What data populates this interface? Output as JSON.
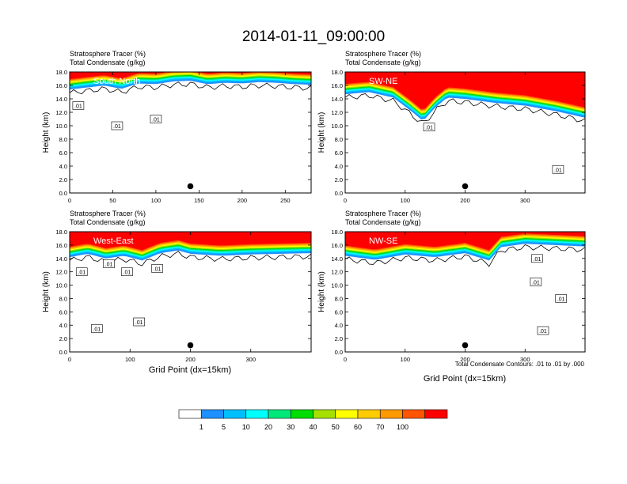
{
  "title": "2014-01-11_09:00:00",
  "panel_header_line1": "Stratosphere Tracer   (%)",
  "panel_header_line2": "Total Condensate   (g/kg)",
  "ylabel": "Height (km)",
  "xlabel": "Grid Point (dx=15km)",
  "contour_note": "Total Condensate Contours: .01 to .01 by .000",
  "colorbar": {
    "colors": [
      "#ffffff",
      "#1e90ff",
      "#00bfff",
      "#00ffff",
      "#00e87a",
      "#00dd00",
      "#a6e000",
      "#ffff00",
      "#ffcc00",
      "#ff9900",
      "#ff5500",
      "#ff0000"
    ],
    "labels": [
      "1",
      "5",
      "10",
      "20",
      "30",
      "40",
      "50",
      "60",
      "70",
      "100"
    ]
  },
  "chart_data": [
    {
      "type": "heatmap",
      "section": "South-North",
      "xlim": [
        0,
        280
      ],
      "xticks": [
        "0",
        "50",
        "100",
        "150",
        "200",
        "250"
      ],
      "xtick_values": [
        0,
        50,
        100,
        150,
        200,
        250
      ],
      "ylim": [
        0,
        18
      ],
      "yticks": [
        "0.0",
        "2.0",
        "4.0",
        "6.0",
        "8.0",
        "10.0",
        "12.0",
        "14.0",
        "16.0",
        "18.0"
      ],
      "tracer_bottom_km": [
        [
          0,
          15.2
        ],
        [
          20,
          15.5
        ],
        [
          40,
          15.8
        ],
        [
          60,
          15.3
        ],
        [
          80,
          16.1
        ],
        [
          100,
          16.0
        ],
        [
          120,
          16.4
        ],
        [
          140,
          16.5
        ],
        [
          160,
          16.0
        ],
        [
          180,
          16.2
        ],
        [
          200,
          16.1
        ],
        [
          220,
          16.3
        ],
        [
          240,
          16.2
        ],
        [
          260,
          16.0
        ],
        [
          280,
          15.9
        ]
      ],
      "contour_labels": [
        {
          "text": ".01",
          "x": 10,
          "y": 13.0
        },
        {
          "text": ".01",
          "x": 55,
          "y": 10.0
        },
        {
          "text": ".01",
          "x": 100,
          "y": 11.0
        }
      ],
      "marker": {
        "x": 140,
        "y": 1.0
      }
    },
    {
      "type": "heatmap",
      "section": "SW-NE",
      "xlim": [
        0,
        400
      ],
      "xticks": [
        "0",
        "100",
        "200",
        "300"
      ],
      "xtick_values": [
        0,
        100,
        200,
        300
      ],
      "ylim": [
        0,
        18
      ],
      "yticks": [
        "0.0",
        "2.0",
        "4.0",
        "6.0",
        "8.0",
        "10.0",
        "12.0",
        "14.0",
        "16.0",
        "18.0"
      ],
      "tracer_bottom_km": [
        [
          0,
          14.5
        ],
        [
          40,
          14.8
        ],
        [
          80,
          14.0
        ],
        [
          110,
          12.0
        ],
        [
          130,
          10.5
        ],
        [
          150,
          12.5
        ],
        [
          170,
          14.0
        ],
        [
          200,
          13.8
        ],
        [
          250,
          13.2
        ],
        [
          300,
          12.8
        ],
        [
          350,
          12.0
        ],
        [
          400,
          11.0
        ]
      ],
      "contour_labels": [
        {
          "text": ".01",
          "x": 140,
          "y": 9.8
        },
        {
          "text": ".01",
          "x": 355,
          "y": 3.5
        }
      ],
      "marker": {
        "x": 200,
        "y": 1.0
      }
    },
    {
      "type": "heatmap",
      "section": "West-East",
      "xlim": [
        0,
        400
      ],
      "xticks": [
        "0",
        "100",
        "200",
        "300"
      ],
      "xtick_values": [
        0,
        100,
        200,
        300
      ],
      "ylim": [
        0,
        18
      ],
      "yticks": [
        "0.0",
        "2.0",
        "4.0",
        "6.0",
        "8.0",
        "10.0",
        "12.0",
        "14.0",
        "16.0",
        "18.0"
      ],
      "tracer_bottom_km": [
        [
          0,
          14.0
        ],
        [
          30,
          14.5
        ],
        [
          60,
          13.8
        ],
        [
          90,
          14.2
        ],
        [
          120,
          13.5
        ],
        [
          150,
          14.6
        ],
        [
          180,
          15.0
        ],
        [
          200,
          14.5
        ],
        [
          250,
          14.2
        ],
        [
          300,
          14.4
        ],
        [
          350,
          14.5
        ],
        [
          400,
          14.6
        ]
      ],
      "contour_labels": [
        {
          "text": ".01",
          "x": 20,
          "y": 12.0
        },
        {
          "text": ".01",
          "x": 65,
          "y": 13.2
        },
        {
          "text": ".01",
          "x": 95,
          "y": 12.0
        },
        {
          "text": ".01",
          "x": 145,
          "y": 12.5
        },
        {
          "text": ".01",
          "x": 45,
          "y": 3.5
        },
        {
          "text": ".01",
          "x": 115,
          "y": 4.5
        }
      ],
      "marker": {
        "x": 200,
        "y": 1.0
      }
    },
    {
      "type": "heatmap",
      "section": "NW-SE",
      "xlim": [
        0,
        400
      ],
      "xticks": [
        "0",
        "100",
        "200",
        "300"
      ],
      "xtick_values": [
        0,
        100,
        200,
        300
      ],
      "ylim": [
        0,
        18
      ],
      "yticks": [
        "0.0",
        "2.0",
        "4.0",
        "6.0",
        "8.0",
        "10.0",
        "12.0",
        "14.0",
        "16.0",
        "18.0"
      ],
      "tracer_bottom_km": [
        [
          0,
          14.2
        ],
        [
          50,
          13.6
        ],
        [
          100,
          14.4
        ],
        [
          150,
          14.0
        ],
        [
          200,
          14.6
        ],
        [
          240,
          13.5
        ],
        [
          260,
          15.5
        ],
        [
          300,
          16.0
        ],
        [
          350,
          15.8
        ],
        [
          400,
          15.6
        ]
      ],
      "contour_labels": [
        {
          "text": ".01",
          "x": 320,
          "y": 14.0
        },
        {
          "text": ".01",
          "x": 318,
          "y": 10.5
        },
        {
          "text": ".01",
          "x": 360,
          "y": 8.0
        },
        {
          "text": ".01",
          "x": 330,
          "y": 3.2
        }
      ],
      "marker": {
        "x": 200,
        "y": 1.0
      }
    }
  ]
}
